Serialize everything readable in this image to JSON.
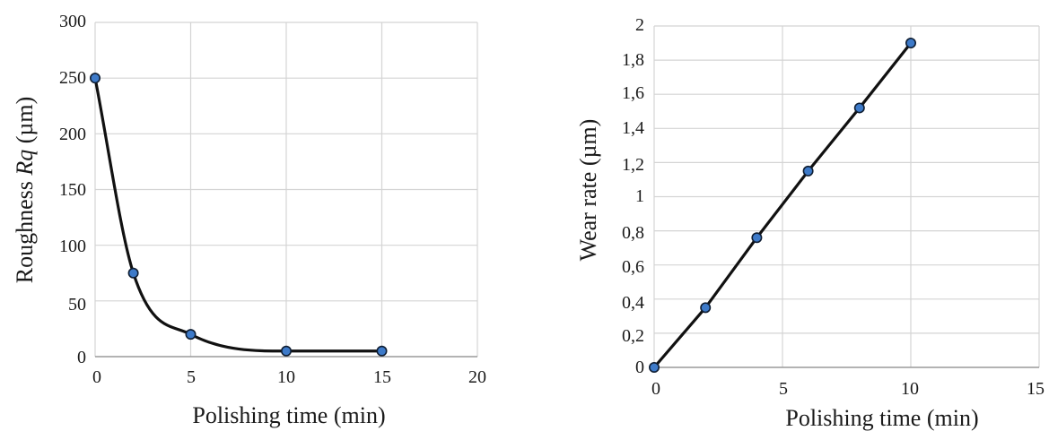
{
  "charts": [
    {
      "ylabel_prefix": "Roughness ",
      "ylabel_symbol": "Rq",
      "ylabel_suffix": " (µm)",
      "xlabel": "Polishing time (min)",
      "xtick_labels": [
        "0",
        "5",
        "10",
        "15",
        "20"
      ],
      "ytick_labels": [
        "0",
        "50",
        "100",
        "150",
        "200",
        "250",
        "300"
      ]
    },
    {
      "ylabel": "Wear rate (µm)",
      "xlabel": "Polishing time (min)",
      "xtick_labels": [
        "0",
        "5",
        "10",
        "15"
      ],
      "ytick_labels": [
        "0",
        "0,2",
        "0,4",
        "0,6",
        "0,8",
        "1",
        "1,2",
        "1,4",
        "1,6",
        "1,8",
        "2"
      ]
    }
  ],
  "chart_data": [
    {
      "type": "line",
      "smooth": true,
      "title": "",
      "xlabel": "Polishing time (min)",
      "ylabel": "Roughness Rq (µm)",
      "xlim": [
        0,
        20
      ],
      "ylim": [
        0,
        300
      ],
      "xticks": [
        0,
        5,
        10,
        15,
        20
      ],
      "yticks": [
        0,
        50,
        100,
        150,
        200,
        250,
        300
      ],
      "grid": true,
      "x": [
        0,
        2,
        5,
        10,
        15
      ],
      "y": [
        250,
        75,
        20,
        5,
        5
      ],
      "line_color": "#111111",
      "marker_color": "#3d7ac9"
    },
    {
      "type": "line",
      "smooth": false,
      "title": "",
      "xlabel": "Polishing time (min)",
      "ylabel": "Wear rate (µm)",
      "xlim": [
        0,
        15
      ],
      "ylim": [
        0,
        2
      ],
      "xticks": [
        0,
        5,
        10,
        15
      ],
      "yticks": [
        0,
        0.2,
        0.4,
        0.6,
        0.8,
        1,
        1.2,
        1.4,
        1.6,
        1.8,
        2
      ],
      "grid": true,
      "x": [
        0,
        2,
        4,
        6,
        8,
        10
      ],
      "y": [
        0,
        0.35,
        0.76,
        1.15,
        1.52,
        1.9
      ],
      "line_color": "#111111",
      "marker_color": "#3d7ac9"
    }
  ]
}
